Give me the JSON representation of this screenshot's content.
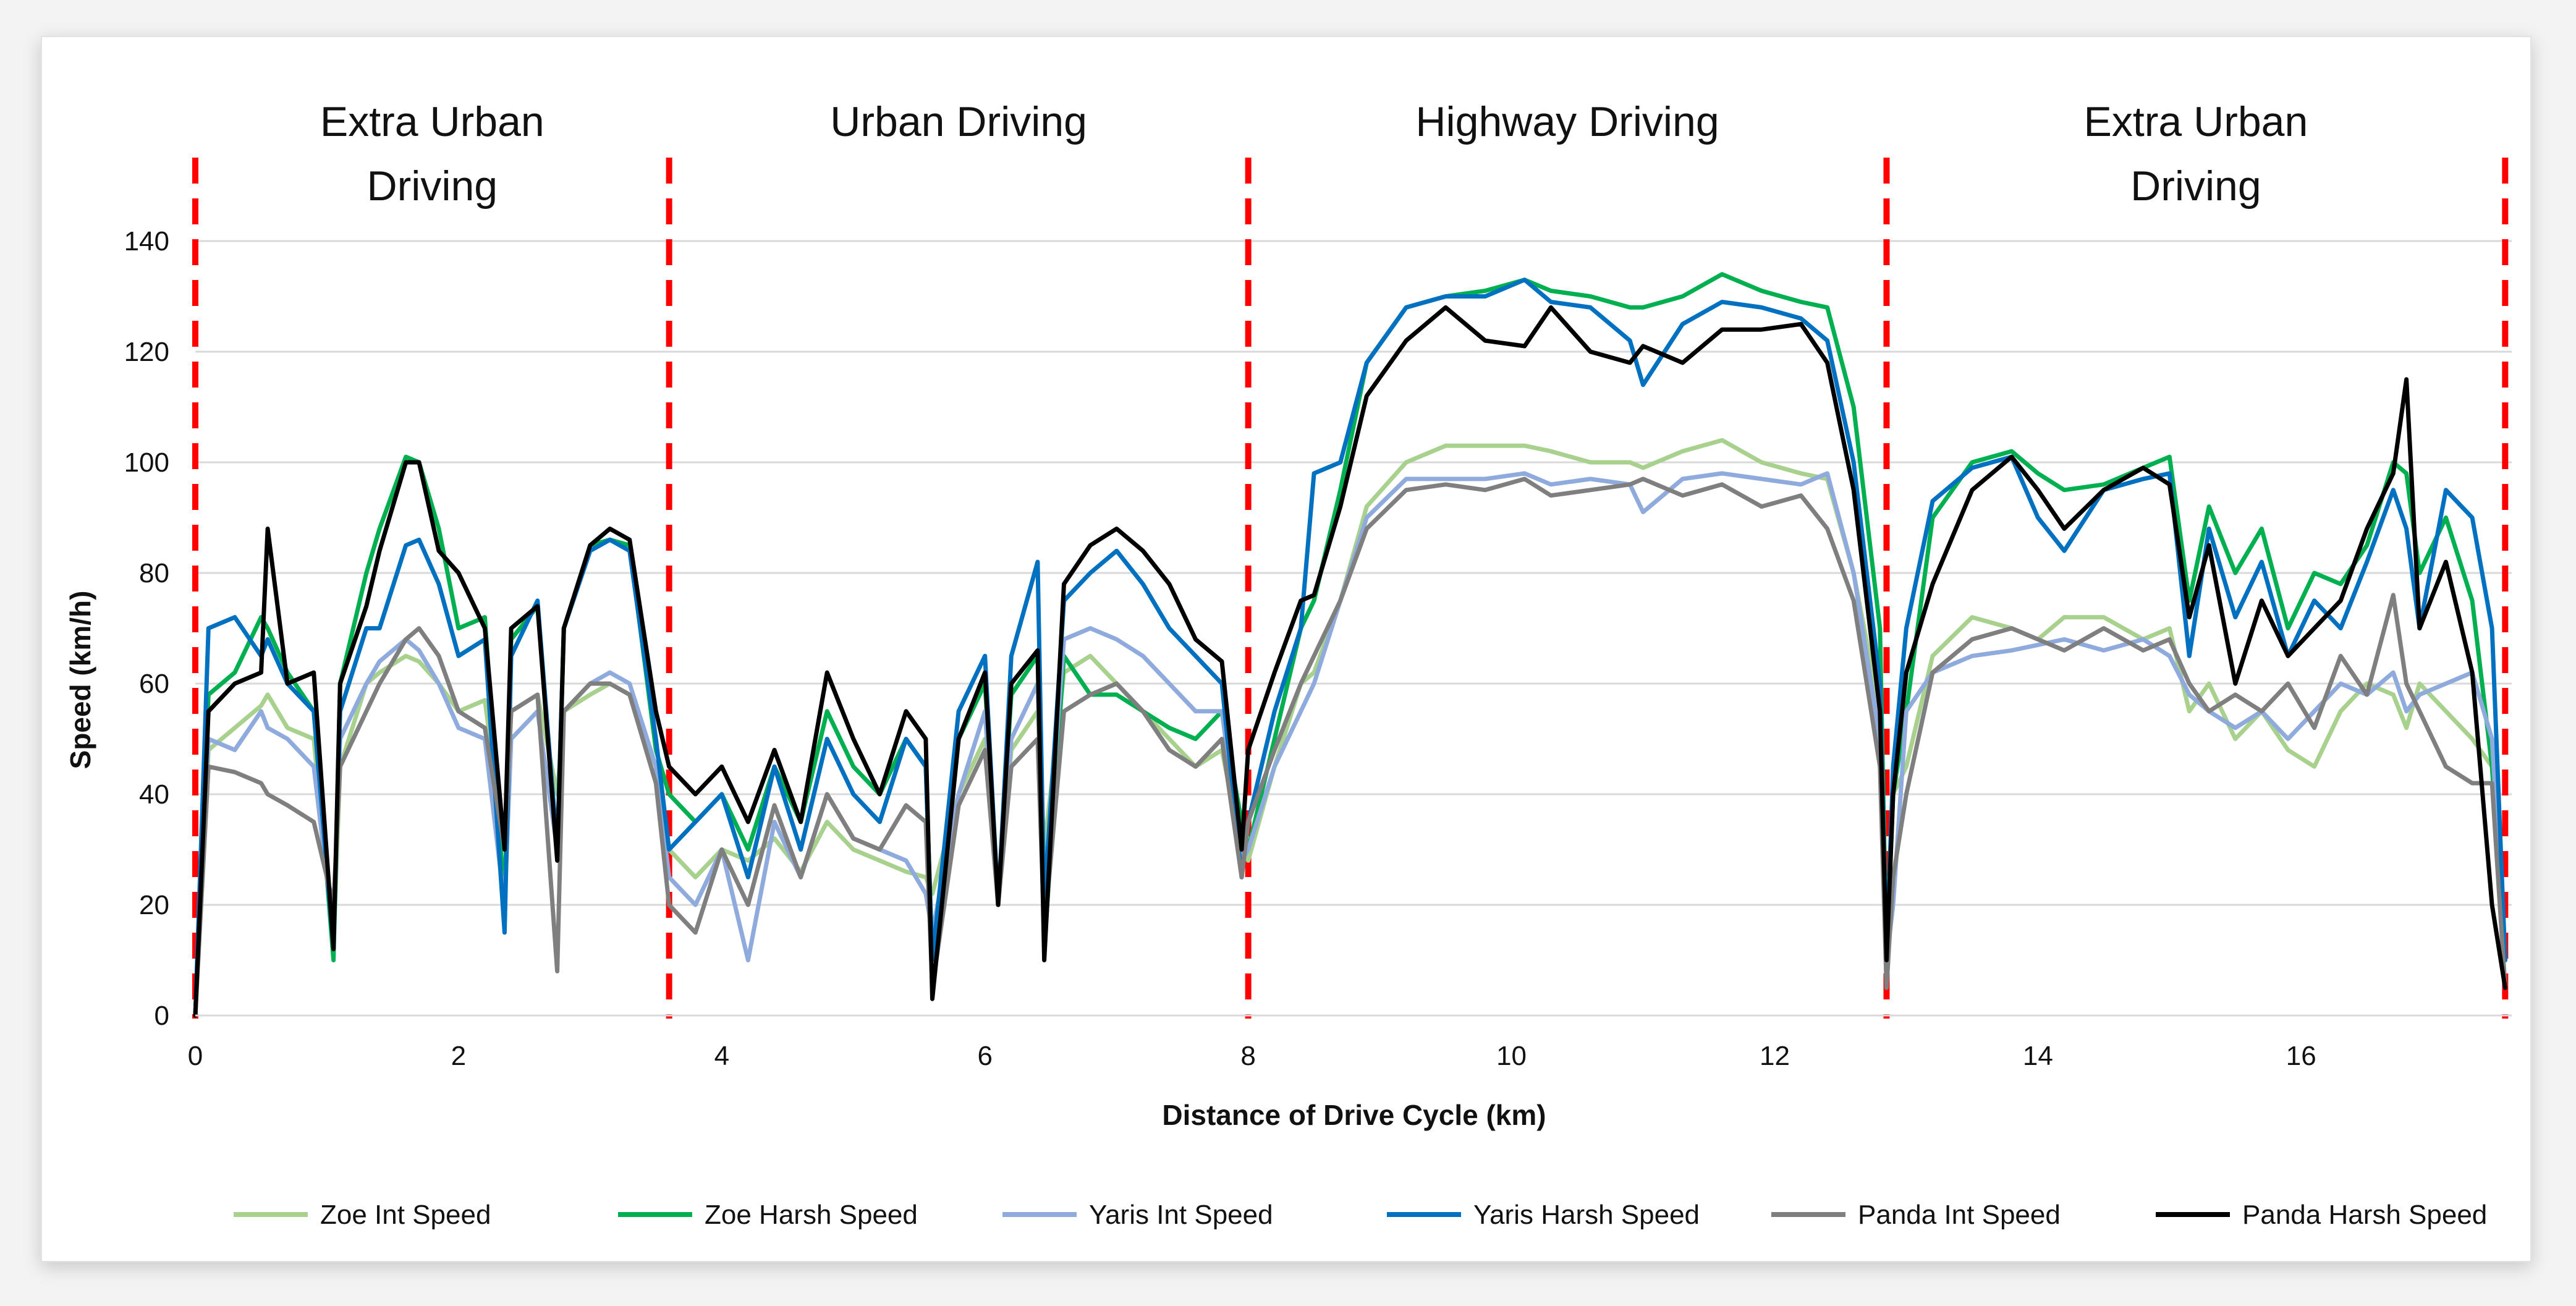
{
  "chart_data": {
    "type": "line",
    "title": "",
    "xlabel": "Distance of Drive Cycle (km)",
    "ylabel": "Speed (km/h)",
    "xlim": [
      0,
      17.6
    ],
    "ylim": [
      0,
      140
    ],
    "xticks": [
      0,
      2,
      4,
      6,
      8,
      10,
      12,
      14,
      16
    ],
    "yticks": [
      0,
      20,
      40,
      60,
      80,
      100,
      120,
      140
    ],
    "gridlines": "horizontal",
    "segment_boundaries_km": [
      0,
      3.6,
      8.0,
      12.85,
      17.55
    ],
    "segments": [
      {
        "label": "Extra Urban Driving",
        "lines": [
          "Extra Urban",
          "Driving"
        ],
        "x_start": 0,
        "x_end": 3.6
      },
      {
        "label": "Urban Driving",
        "lines": [
          "Urban Driving"
        ],
        "x_start": 3.6,
        "x_end": 8.0
      },
      {
        "label": "Highway Driving",
        "lines": [
          "Highway Driving"
        ],
        "x_start": 8.0,
        "x_end": 12.85
      },
      {
        "label": "Extra Urban Driving",
        "lines": [
          "Extra Urban",
          "Driving"
        ],
        "x_start": 12.85,
        "x_end": 17.55
      }
    ],
    "x": [
      0,
      0.1,
      0.3,
      0.5,
      0.55,
      0.7,
      0.9,
      1.05,
      1.1,
      1.3,
      1.4,
      1.6,
      1.7,
      1.85,
      2.0,
      2.2,
      2.35,
      2.4,
      2.6,
      2.75,
      2.8,
      3.0,
      3.15,
      3.3,
      3.5,
      3.6,
      3.8,
      4.0,
      4.2,
      4.4,
      4.6,
      4.8,
      5.0,
      5.2,
      5.4,
      5.55,
      5.6,
      5.8,
      6.0,
      6.1,
      6.2,
      6.4,
      6.45,
      6.6,
      6.8,
      7.0,
      7.2,
      7.4,
      7.6,
      7.8,
      7.95,
      8.0,
      8.2,
      8.4,
      8.5,
      8.7,
      8.9,
      9.2,
      9.5,
      9.8,
      10.1,
      10.3,
      10.6,
      10.9,
      11.0,
      11.3,
      11.6,
      11.9,
      12.2,
      12.4,
      12.6,
      12.8,
      12.85,
      12.9,
      13.0,
      13.2,
      13.5,
      13.8,
      14.0,
      14.2,
      14.5,
      14.8,
      15.0,
      15.15,
      15.3,
      15.5,
      15.7,
      15.9,
      16.1,
      16.3,
      16.5,
      16.7,
      16.8,
      16.9,
      17.1,
      17.3,
      17.45,
      17.55
    ],
    "series": [
      {
        "name": "Zoe Int Speed",
        "color": "#a9d18e",
        "values": [
          0,
          48,
          52,
          56,
          58,
          52,
          50,
          12,
          45,
          60,
          62,
          65,
          64,
          60,
          55,
          57,
          30,
          55,
          58,
          40,
          55,
          58,
          60,
          58,
          45,
          30,
          25,
          30,
          28,
          32,
          26,
          35,
          30,
          28,
          26,
          25,
          22,
          40,
          50,
          20,
          48,
          55,
          30,
          62,
          65,
          60,
          55,
          50,
          45,
          48,
          30,
          28,
          45,
          60,
          62,
          75,
          92,
          100,
          103,
          103,
          103,
          102,
          100,
          100,
          99,
          102,
          104,
          100,
          98,
          97,
          80,
          55,
          10,
          40,
          45,
          65,
          72,
          70,
          68,
          72,
          72,
          68,
          70,
          55,
          60,
          50,
          55,
          48,
          45,
          55,
          60,
          58,
          52,
          60,
          55,
          50,
          45,
          10
        ]
      },
      {
        "name": "Zoe Harsh Speed",
        "color": "#00b050",
        "values": [
          0,
          58,
          62,
          72,
          70,
          62,
          55,
          10,
          60,
          80,
          88,
          101,
          100,
          88,
          70,
          72,
          20,
          68,
          74,
          30,
          70,
          85,
          86,
          85,
          48,
          40,
          35,
          40,
          30,
          45,
          35,
          55,
          45,
          40,
          50,
          45,
          10,
          50,
          60,
          20,
          58,
          65,
          12,
          65,
          58,
          58,
          55,
          52,
          50,
          55,
          35,
          30,
          50,
          70,
          75,
          95,
          118,
          128,
          130,
          131,
          133,
          131,
          130,
          128,
          128,
          130,
          134,
          131,
          129,
          128,
          110,
          70,
          10,
          40,
          55,
          90,
          100,
          102,
          98,
          95,
          96,
          99,
          101,
          75,
          92,
          80,
          88,
          70,
          80,
          78,
          85,
          100,
          98,
          80,
          90,
          75,
          45,
          10
        ]
      },
      {
        "name": "Yaris Int Speed",
        "color": "#8faadc",
        "values": [
          0,
          50,
          48,
          55,
          52,
          50,
          45,
          15,
          50,
          60,
          64,
          68,
          66,
          60,
          52,
          50,
          20,
          50,
          55,
          30,
          55,
          60,
          62,
          60,
          45,
          25,
          20,
          30,
          10,
          35,
          25,
          40,
          32,
          30,
          28,
          22,
          15,
          40,
          55,
          20,
          50,
          60,
          20,
          68,
          70,
          68,
          65,
          60,
          55,
          55,
          28,
          30,
          45,
          55,
          60,
          75,
          90,
          97,
          97,
          97,
          98,
          96,
          97,
          96,
          91,
          97,
          98,
          97,
          96,
          98,
          80,
          50,
          10,
          20,
          55,
          62,
          65,
          66,
          67,
          68,
          66,
          68,
          65,
          58,
          55,
          52,
          55,
          50,
          55,
          60,
          58,
          62,
          55,
          58,
          60,
          62,
          50,
          10
        ]
      },
      {
        "name": "Yaris Harsh Speed",
        "color": "#0070c0",
        "values": [
          0,
          70,
          72,
          65,
          68,
          60,
          55,
          12,
          55,
          70,
          70,
          85,
          86,
          78,
          65,
          68,
          15,
          65,
          75,
          30,
          70,
          84,
          86,
          84,
          50,
          30,
          35,
          40,
          25,
          45,
          30,
          50,
          40,
          35,
          50,
          45,
          10,
          55,
          65,
          20,
          65,
          82,
          20,
          75,
          80,
          84,
          78,
          70,
          65,
          60,
          25,
          35,
          55,
          70,
          98,
          100,
          118,
          128,
          130,
          130,
          133,
          129,
          128,
          122,
          114,
          125,
          129,
          128,
          126,
          122,
          100,
          60,
          10,
          45,
          70,
          93,
          99,
          101,
          90,
          84,
          95,
          97,
          98,
          65,
          88,
          72,
          82,
          65,
          75,
          70,
          82,
          95,
          88,
          70,
          95,
          90,
          70,
          10
        ]
      },
      {
        "name": "Panda Int Speed",
        "color": "#7f7f7f",
        "values": [
          0,
          45,
          44,
          42,
          40,
          38,
          35,
          20,
          45,
          55,
          60,
          68,
          70,
          65,
          55,
          52,
          30,
          55,
          58,
          8,
          55,
          60,
          60,
          58,
          42,
          20,
          15,
          30,
          20,
          38,
          25,
          40,
          32,
          30,
          38,
          35,
          5,
          38,
          48,
          20,
          45,
          50,
          15,
          55,
          58,
          60,
          55,
          48,
          45,
          50,
          25,
          35,
          48,
          60,
          65,
          75,
          88,
          95,
          96,
          95,
          97,
          94,
          95,
          96,
          97,
          94,
          96,
          92,
          94,
          88,
          75,
          45,
          5,
          25,
          40,
          62,
          68,
          70,
          68,
          66,
          70,
          66,
          68,
          60,
          55,
          58,
          55,
          60,
          52,
          65,
          58,
          76,
          60,
          55,
          45,
          42,
          42,
          5
        ]
      },
      {
        "name": "Panda Harsh Speed",
        "color": "#000000",
        "values": [
          0,
          55,
          60,
          62,
          88,
          60,
          62,
          12,
          60,
          74,
          84,
          100,
          100,
          84,
          80,
          70,
          30,
          70,
          74,
          28,
          70,
          85,
          88,
          86,
          55,
          45,
          40,
          45,
          35,
          48,
          35,
          62,
          50,
          40,
          55,
          50,
          3,
          50,
          62,
          20,
          60,
          66,
          10,
          78,
          85,
          88,
          84,
          78,
          68,
          64,
          30,
          48,
          62,
          75,
          76,
          92,
          112,
          122,
          128,
          122,
          121,
          128,
          120,
          118,
          121,
          118,
          124,
          124,
          125,
          118,
          95,
          55,
          10,
          40,
          62,
          78,
          95,
          101,
          95,
          88,
          95,
          99,
          96,
          72,
          85,
          60,
          75,
          65,
          70,
          75,
          88,
          98,
          115,
          70,
          82,
          62,
          20,
          5
        ]
      }
    ]
  }
}
